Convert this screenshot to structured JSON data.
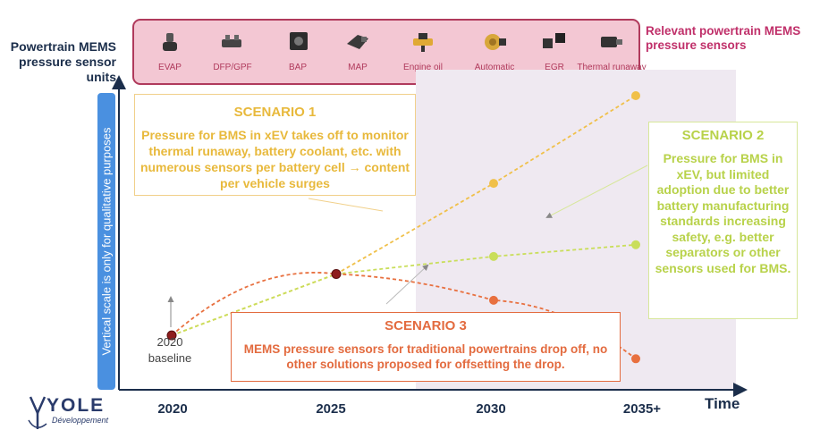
{
  "y_axis_title": "Powertrain MEMS pressure sensor units",
  "vertical_note": "Vertical scale is only for qualitative purposes",
  "banner_title": "Relevant powertrain MEMS pressure sensors",
  "sensors": [
    {
      "label": "EVAP",
      "icon": "evap-sensor-icon"
    },
    {
      "label": "DFP/GPF",
      "icon": "dfp-gpf-sensor-icon"
    },
    {
      "label": "BAP",
      "icon": "bap-sensor-icon"
    },
    {
      "label": "MAP",
      "icon": "map-sensor-icon"
    },
    {
      "label": "Engine oil",
      "icon": "engine-oil-sensor-icon"
    },
    {
      "label": "Automatic transmission oil",
      "icon": "transmission-oil-sensor-icon"
    },
    {
      "label": "EGR",
      "icon": "egr-sensor-icon"
    },
    {
      "label": "Thermal runaway",
      "icon": "thermal-runaway-sensor-icon"
    }
  ],
  "scenarios": {
    "s1": {
      "title": "SCENARIO 1",
      "body": "Pressure for BMS in xEV takes off to monitor thermal runaway, battery coolant, etc. with numerous sensors per battery cell → content per vehicle surges",
      "color": "#e8b93c"
    },
    "s2": {
      "title": "SCENARIO 2",
      "body": "Pressure for BMS in xEV, but limited adoption due to better battery manufacturing standards increasing safety, e.g. better separators or other sensors used for BMS.",
      "color": "#b8d24a"
    },
    "s3": {
      "title": "SCENARIO 3",
      "body": "MEMS pressure sensors for traditional powertrains drop off, no other solutions proposed for offsetting the drop.",
      "color": "#e36b3f"
    }
  },
  "baseline_label": "2020 baseline",
  "time_label": "Time",
  "logo": {
    "name": "YOLE",
    "sub": "Développement"
  },
  "chart_data": {
    "type": "line",
    "x": [
      "2020",
      "2025",
      "2030",
      "2035+"
    ],
    "xlabel": "Time",
    "ylabel": "Powertrain MEMS pressure sensor units",
    "ylim": [
      0,
      100
    ],
    "grid": false,
    "series": [
      {
        "name": "SCENARIO 1",
        "color": "#f0c04a",
        "values": [
          18,
          39,
          70,
          100
        ]
      },
      {
        "name": "SCENARIO 2",
        "color": "#c9de5a",
        "values": [
          18,
          39,
          45,
          49
        ]
      },
      {
        "name": "SCENARIO 3",
        "color": "#e8703f",
        "values": [
          18,
          39,
          30,
          10
        ]
      }
    ]
  }
}
